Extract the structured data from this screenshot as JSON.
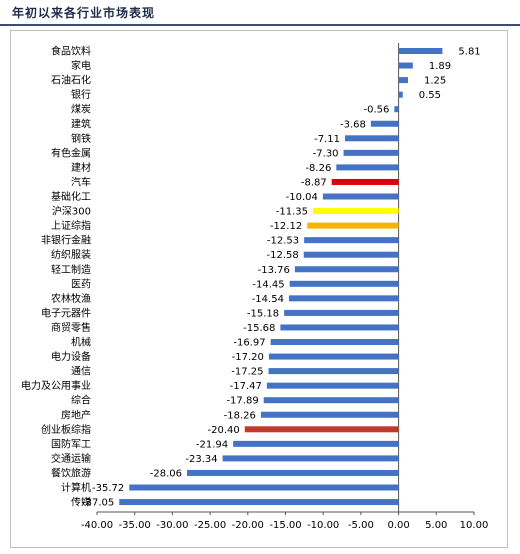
{
  "header": {
    "title": "年初以来各行业市场表现"
  },
  "chart_data": {
    "type": "bar",
    "orientation": "horizontal",
    "title": "",
    "xlabel": "",
    "ylabel": "",
    "xlim": [
      -40,
      10
    ],
    "x_ticks": [
      "-40.00",
      "-35.00",
      "-30.00",
      "-25.00",
      "-20.00",
      "-15.00",
      "-10.00",
      "-5.00",
      "0.00",
      "5.00",
      "10.00"
    ],
    "grid": false,
    "default_color": "#4472c4",
    "categories": [
      "食品饮料",
      "家电",
      "石油石化",
      "银行",
      "煤炭",
      "建筑",
      "钢铁",
      "有色金属",
      "建材",
      "汽车",
      "基础化工",
      "沪深300",
      "上证综指",
      "非银行金融",
      "纺织服装",
      "轻工制造",
      "医药",
      "农林牧渔",
      "电子元器件",
      "商贸零售",
      "机械",
      "电力设备",
      "通信",
      "电力及公用事业",
      "综合",
      "房地产",
      "创业板综指",
      "国防军工",
      "交通运输",
      "餐饮旅游",
      "计算机",
      "传媒"
    ],
    "values": [
      5.81,
      1.89,
      1.25,
      0.55,
      -0.56,
      -3.68,
      -7.11,
      -7.3,
      -8.26,
      -8.87,
      -10.04,
      -11.35,
      -12.12,
      -12.53,
      -12.58,
      -13.76,
      -14.45,
      -14.54,
      -15.18,
      -15.68,
      -16.97,
      -17.2,
      -17.25,
      -17.47,
      -17.89,
      -18.26,
      -20.4,
      -21.94,
      -23.34,
      -28.06,
      -35.72,
      -37.05
    ],
    "value_labels": [
      "5.81",
      "1.89",
      "1.25",
      "0.55",
      "-0.56",
      "-3.68",
      "-7.11",
      "-7.30",
      "-8.26",
      "-8.87",
      "-10.04",
      "-11.35",
      "-12.12",
      "-12.53",
      "-12.58",
      "-13.76",
      "-14.45",
      "-14.54",
      "-15.18",
      "-15.68",
      "-16.97",
      "-17.20",
      "-17.25",
      "-17.47",
      "-17.89",
      "-18.26",
      "-20.40",
      "-21.94",
      "-23.34",
      "-28.06",
      "-35.72",
      "-37.05"
    ],
    "highlight_colors": {
      "汽车": "#e00000",
      "沪深300": "#ffff00",
      "上证综指": "#f5b400",
      "创业板综指": "#c0392b"
    }
  }
}
